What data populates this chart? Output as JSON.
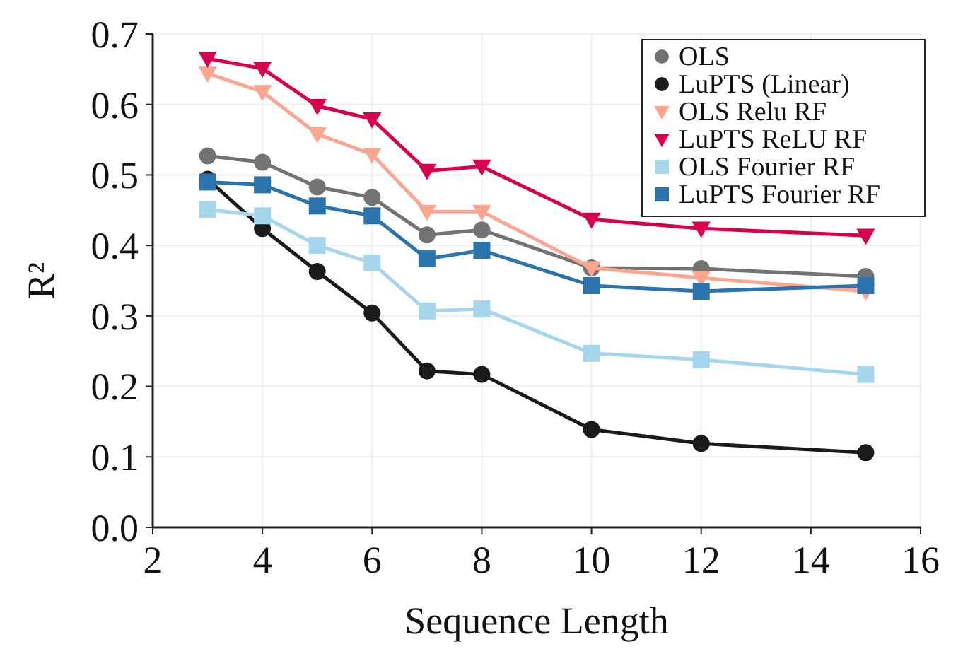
{
  "chart_data": {
    "type": "line",
    "xlabel": "Sequence Length",
    "ylabel": "R²",
    "xlim": [
      2,
      16
    ],
    "xticks": [
      2,
      4,
      6,
      8,
      10,
      12,
      14,
      16
    ],
    "ylim": [
      0,
      0.7
    ],
    "yticks": [
      {
        "value": 0,
        "label": "0.0"
      },
      0.1,
      0.2,
      0.3,
      0.4,
      0.5,
      0.6,
      0.7
    ],
    "grid": true,
    "legend": "top right",
    "line_style": "solid",
    "x": [
      3,
      4,
      5,
      6,
      7,
      8,
      10,
      12,
      15
    ],
    "series": [
      {
        "name": "OLS",
        "color": "#737373",
        "marker": "circle",
        "values": [
          0.527,
          0.518,
          0.483,
          0.468,
          0.415,
          0.422,
          0.368,
          0.367,
          0.356
        ]
      },
      {
        "name": "LuPTS (Linear)",
        "color": "#1a1a1a",
        "marker": "circle",
        "values": [
          0.494,
          0.424,
          0.363,
          0.304,
          0.222,
          0.217,
          0.139,
          0.119,
          0.106
        ]
      },
      {
        "name": "OLS Relu RF",
        "color": "#fca590",
        "marker": "triangle",
        "values": [
          0.644,
          0.618,
          0.558,
          0.529,
          0.448,
          0.448,
          0.368,
          0.354,
          0.335
        ]
      },
      {
        "name": "LuPTS ReLU RF",
        "color": "#d7004f",
        "marker": "triangle",
        "values": [
          0.665,
          0.651,
          0.598,
          0.579,
          0.506,
          0.512,
          0.437,
          0.424,
          0.414
        ]
      },
      {
        "name": "OLS Fourier RF",
        "color": "#a6d5ee",
        "marker": "square",
        "values": [
          0.451,
          0.442,
          0.4,
          0.375,
          0.307,
          0.31,
          0.247,
          0.238,
          0.217
        ]
      },
      {
        "name": "LuPTS Fourier RF",
        "color": "#2a73ad",
        "marker": "square",
        "values": [
          0.49,
          0.486,
          0.456,
          0.442,
          0.381,
          0.393,
          0.343,
          0.335,
          0.343
        ]
      }
    ]
  }
}
